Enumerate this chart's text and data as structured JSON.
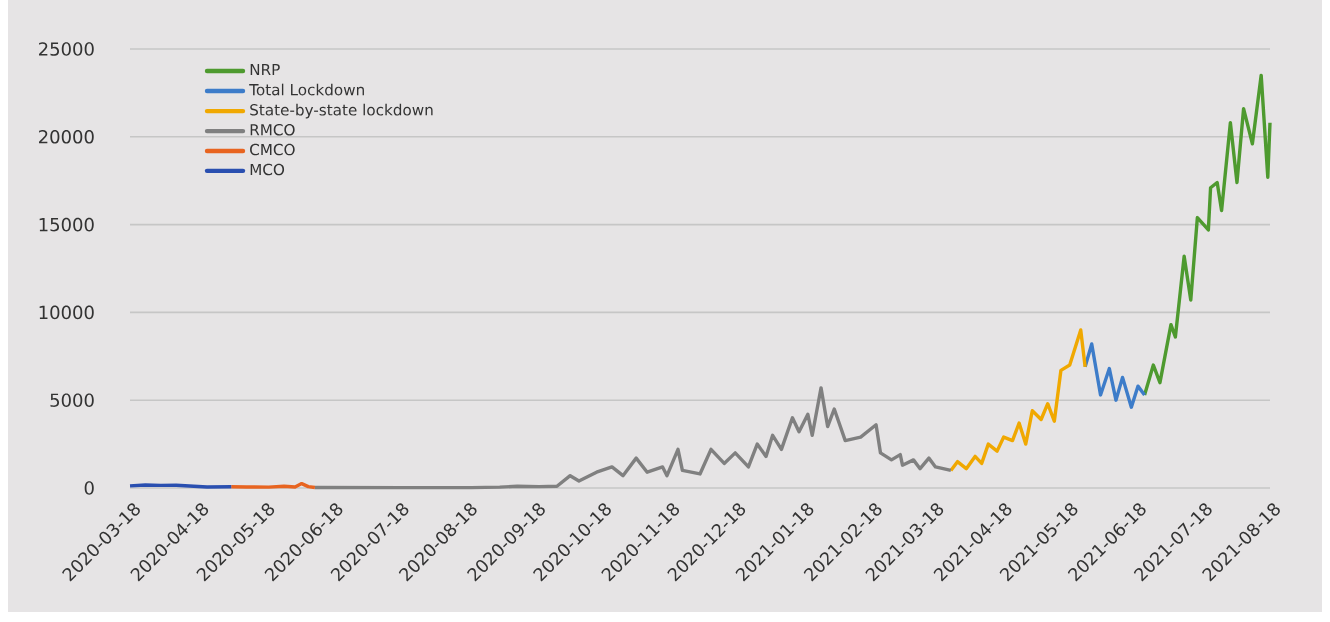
{
  "chart_data": {
    "type": "line",
    "xlim": [
      "2020-03-18",
      "2021-08-18"
    ],
    "xticks": [
      "2020-03-18",
      "2020-04-18",
      "2020-05-18",
      "2020-06-18",
      "2020-07-18",
      "2020-08-18",
      "2020-09-18",
      "2020-10-18",
      "2020-11-18",
      "2020-12-18",
      "2021-01-18",
      "2021-02-18",
      "2021-03-18",
      "2021-04-18",
      "2021-05-18",
      "2021-06-18",
      "2021-07-18",
      "2021-08-18"
    ],
    "ylim": [
      0,
      25000
    ],
    "yticks": [
      0,
      5000,
      10000,
      15000,
      20000,
      25000
    ],
    "grid": "y",
    "legend": "top left",
    "series": [
      {
        "name": "NRP",
        "color": "#4e9a2f",
        "x": [
          "2021-06-22",
          "2021-06-26",
          "2021-06-29",
          "2021-07-04",
          "2021-07-06",
          "2021-07-10",
          "2021-07-13",
          "2021-07-16",
          "2021-07-21",
          "2021-07-22",
          "2021-07-25",
          "2021-07-27",
          "2021-07-31",
          "2021-08-03",
          "2021-08-06",
          "2021-08-10",
          "2021-08-14",
          "2021-08-17",
          "2021-08-18"
        ],
        "values": [
          5300,
          7000,
          6000,
          9300,
          8600,
          13200,
          10700,
          15400,
          14700,
          17100,
          17400,
          15800,
          20800,
          17400,
          21600,
          19600,
          23500,
          17700,
          20800
        ]
      },
      {
        "name": "Total Lockdown",
        "color": "#3d7cc9",
        "x": [
          "2021-05-26",
          "2021-05-29",
          "2021-06-02",
          "2021-06-06",
          "2021-06-09",
          "2021-06-12",
          "2021-06-16",
          "2021-06-19",
          "2021-06-22"
        ],
        "values": [
          6900,
          8200,
          5300,
          6800,
          5000,
          6300,
          4600,
          5800,
          5300
        ]
      },
      {
        "name": "State-by-state lockdown",
        "color": "#f0a800",
        "x": [
          "2021-03-26",
          "2021-03-29",
          "2021-04-02",
          "2021-04-06",
          "2021-04-09",
          "2021-04-12",
          "2021-04-16",
          "2021-04-19",
          "2021-04-23",
          "2021-04-26",
          "2021-04-29",
          "2021-05-02",
          "2021-05-06",
          "2021-05-09",
          "2021-05-12",
          "2021-05-15",
          "2021-05-19",
          "2021-05-24",
          "2021-05-26"
        ],
        "values": [
          1000,
          1500,
          1100,
          1800,
          1400,
          2500,
          2100,
          2900,
          2700,
          3700,
          2500,
          4400,
          3900,
          4800,
          3800,
          6700,
          7000,
          9000,
          6900
        ]
      },
      {
        "name": "RMCO",
        "color": "#808080",
        "x": [
          "2020-06-10",
          "2020-07-20",
          "2020-08-20",
          "2020-09-02",
          "2020-09-10",
          "2020-09-20",
          "2020-09-28",
          "2020-10-04",
          "2020-10-08",
          "2020-10-16",
          "2020-10-23",
          "2020-10-28",
          "2020-11-03",
          "2020-11-08",
          "2020-11-15",
          "2020-11-17",
          "2020-11-22",
          "2020-11-24",
          "2020-12-02",
          "2020-12-07",
          "2020-12-13",
          "2020-12-18",
          "2020-12-24",
          "2020-12-28",
          "2021-01-01",
          "2021-01-04",
          "2021-01-08",
          "2021-01-13",
          "2021-01-16",
          "2021-01-20",
          "2021-01-22",
          "2021-01-26",
          "2021-01-29",
          "2021-02-01",
          "2021-02-06",
          "2021-02-13",
          "2021-02-20",
          "2021-02-22",
          "2021-02-27",
          "2021-03-03",
          "2021-03-04",
          "2021-03-09",
          "2021-03-12",
          "2021-03-16",
          "2021-03-19",
          "2021-03-26"
        ],
        "values": [
          30,
          20,
          20,
          50,
          100,
          80,
          100,
          700,
          400,
          900,
          1200,
          700,
          1700,
          900,
          1200,
          700,
          2200,
          1000,
          800,
          2200,
          1400,
          2000,
          1200,
          2500,
          1800,
          3000,
          2200,
          4000,
          3200,
          4200,
          3000,
          5700,
          3500,
          4500,
          2700,
          2900,
          3600,
          2000,
          1600,
          1900,
          1300,
          1600,
          1100,
          1700,
          1200,
          1000
        ]
      },
      {
        "name": "CMCO",
        "color": "#e86420",
        "x": [
          "2020-05-03",
          "2020-05-10",
          "2020-05-20",
          "2020-05-27",
          "2020-06-01",
          "2020-06-04",
          "2020-06-07",
          "2020-06-10"
        ],
        "values": [
          70,
          60,
          50,
          100,
          60,
          250,
          80,
          30
        ]
      },
      {
        "name": "MCO",
        "color": "#2a4fb0",
        "x": [
          "2020-03-18",
          "2020-03-25",
          "2020-04-01",
          "2020-04-08",
          "2020-04-15",
          "2020-04-22",
          "2020-05-03"
        ],
        "values": [
          120,
          170,
          150,
          160,
          110,
          60,
          70
        ]
      }
    ]
  }
}
